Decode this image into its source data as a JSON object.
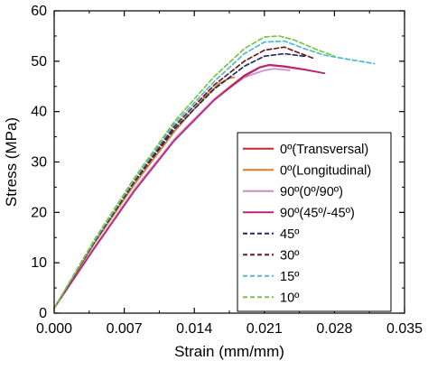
{
  "chart_data": {
    "type": "line",
    "xlabel": "Strain (mm/mm)",
    "ylabel": "Stress (MPa)",
    "xlim": [
      0,
      0.035
    ],
    "ylim": [
      0,
      60
    ],
    "xticks": [
      0,
      0.007,
      0.014,
      0.021,
      0.028,
      0.035
    ],
    "xtick_labels": [
      "0.000",
      "0.007",
      "0.014",
      "0.021",
      "0.028",
      "0.035"
    ],
    "yticks": [
      0,
      10,
      20,
      30,
      40,
      50,
      60
    ],
    "ytick_labels": [
      "0",
      "10",
      "20",
      "30",
      "40",
      "50",
      "60"
    ],
    "grid": false,
    "legend_position": "bottom-right",
    "series": [
      {
        "name": "0º(Transversal)",
        "color": "#c0282d",
        "dash": "solid",
        "x": [
          0,
          0.004,
          0.008,
          0.012,
          0.016,
          0.019,
          0.0205,
          0.0215,
          0.023,
          0.025,
          0.027
        ],
        "y": [
          1,
          13,
          24.5,
          34.5,
          42.5,
          47.2,
          48.8,
          49.3,
          49.0,
          48.4,
          47.6
        ]
      },
      {
        "name": "0º(Longitudinal)",
        "color": "#e07b2a",
        "dash": "solid",
        "x": [
          0,
          0.004,
          0.008,
          0.012,
          0.015,
          0.0165,
          0.0175,
          0.018
        ],
        "y": [
          1,
          13.8,
          25.5,
          36,
          42.8,
          45.6,
          46.6,
          46.8
        ]
      },
      {
        "name": "90º(0º/90º)",
        "color": "#c88ccc",
        "dash": "solid",
        "x": [
          0,
          0.004,
          0.008,
          0.012,
          0.016,
          0.019,
          0.021,
          0.022,
          0.0235
        ],
        "y": [
          1,
          13,
          24.5,
          34.5,
          42.5,
          46.8,
          48.2,
          48.5,
          48.2
        ]
      },
      {
        "name": "90º(45º/-45º)",
        "color": "#b5277f",
        "dash": "solid",
        "x": [
          0,
          0.004,
          0.008,
          0.012,
          0.016,
          0.019,
          0.0205,
          0.0215,
          0.023,
          0.025,
          0.027
        ],
        "y": [
          1,
          12.8,
          24.2,
          34.2,
          42.3,
          47,
          48.7,
          49.2,
          48.9,
          48.3,
          47.6
        ]
      },
      {
        "name": "45º",
        "color": "#1f2a66",
        "dash": "dashed",
        "x": [
          0,
          0.004,
          0.008,
          0.012,
          0.016,
          0.019,
          0.021,
          0.023,
          0.025
        ],
        "y": [
          1,
          14,
          26,
          36.5,
          44.5,
          49,
          51,
          51.5,
          51.0
        ]
      },
      {
        "name": "30º",
        "color": "#6a1f1f",
        "dash": "dashed",
        "x": [
          0,
          0.004,
          0.008,
          0.012,
          0.016,
          0.019,
          0.021,
          0.023,
          0.024,
          0.026
        ],
        "y": [
          1,
          14.2,
          26.2,
          37,
          45.3,
          50,
          52.2,
          52.8,
          52.0,
          50.5
        ]
      },
      {
        "name": "15º",
        "color": "#4fb8d8",
        "dash": "dashed",
        "x": [
          0,
          0.004,
          0.008,
          0.012,
          0.016,
          0.019,
          0.021,
          0.023,
          0.025,
          0.027,
          0.029,
          0.032
        ],
        "y": [
          1,
          14.3,
          26.5,
          37.5,
          46,
          51.5,
          53.8,
          54,
          52.5,
          51.2,
          50.5,
          49.5
        ]
      },
      {
        "name": "10º",
        "color": "#7dc242",
        "dash": "dashed",
        "x": [
          0,
          0.004,
          0.008,
          0.012,
          0.016,
          0.019,
          0.021,
          0.0225,
          0.024,
          0.026,
          0.028
        ],
        "y": [
          1,
          14.5,
          26.8,
          38,
          47,
          52.5,
          54.8,
          55.0,
          54.2,
          52.5,
          51.0
        ]
      }
    ]
  }
}
